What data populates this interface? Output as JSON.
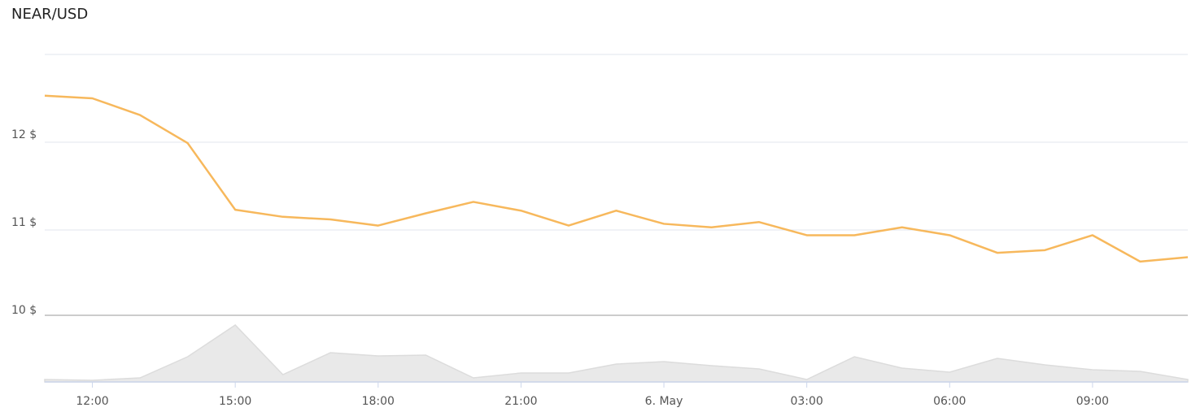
{
  "chart_data": [
    {
      "type": "line",
      "title": "NEAR/USD",
      "categories": [
        null,
        "12:00",
        null,
        null,
        "15:00",
        null,
        null,
        "18:00",
        null,
        null,
        "21:00",
        null,
        null,
        "6. May",
        null,
        null,
        "03:00",
        null,
        null,
        "06:00",
        null,
        null,
        "09:00",
        null,
        null
      ],
      "series": [
        {
          "name": "NEAR/USD",
          "color": "#f7b85c",
          "values": [
            12.53,
            12.5,
            12.31,
            11.99,
            11.23,
            11.15,
            11.12,
            11.05,
            11.19,
            11.32,
            11.22,
            11.05,
            11.22,
            11.07,
            11.03,
            11.09,
            10.94,
            10.94,
            11.03,
            10.94,
            10.74,
            10.77,
            10.94,
            10.64,
            10.69
          ]
        }
      ],
      "ylim": [
        10,
        13
      ],
      "yticks": [
        {
          "value": 10,
          "label": "10 $"
        },
        {
          "value": 11,
          "label": "11 $"
        },
        {
          "value": 12,
          "label": "12 $"
        }
      ],
      "grid": true
    },
    {
      "type": "area",
      "color": "#e9e9e9",
      "values": [
        3,
        2,
        5,
        31,
        70,
        9,
        36,
        32,
        33,
        5,
        11,
        11,
        22,
        25,
        20,
        16,
        3,
        31,
        17,
        12,
        29,
        21,
        15,
        13,
        3
      ],
      "ylim": [
        0,
        80
      ]
    }
  ]
}
